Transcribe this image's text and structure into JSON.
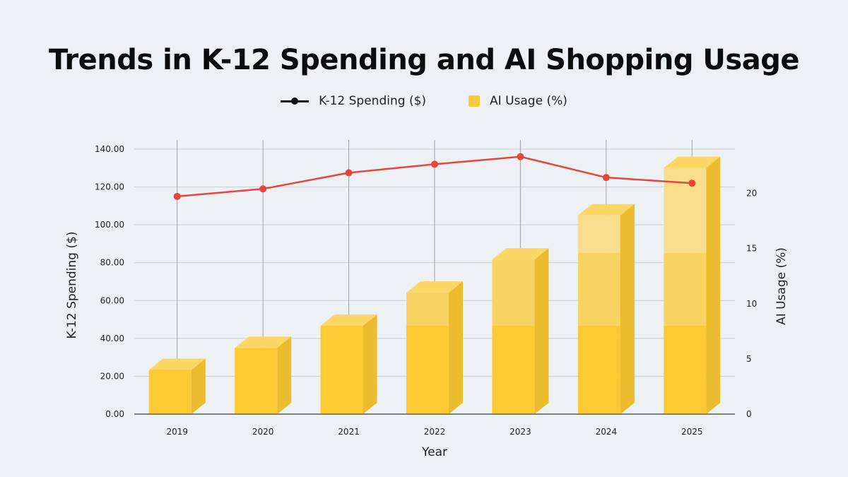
{
  "chart_data": {
    "type": "bar",
    "title": "Trends in K-12 Spending and AI Shopping Usage",
    "categories": [
      "2019",
      "2020",
      "2021",
      "2022",
      "2023",
      "2024",
      "2025"
    ],
    "xlabel": "Year",
    "ylabel_left": "K-12 Spending ($)",
    "ylabel_right": "AI Usage (%)",
    "ylim_left": [
      0,
      140
    ],
    "ylim_right": [
      0,
      24
    ],
    "yticks_left": [
      "0.00",
      "20.00",
      "40.00",
      "60.00",
      "80.00",
      "100.00",
      "120.00",
      "140.00"
    ],
    "yticks_right": [
      "0",
      "5",
      "10",
      "15",
      "20"
    ],
    "grid": true,
    "legend_position": "top-center",
    "series": [
      {
        "name": "K-12 Spending ($)",
        "type": "line",
        "axis": "left",
        "color": "#e5473e",
        "values": [
          115,
          119,
          127.5,
          132,
          136,
          125,
          122
        ]
      },
      {
        "name": "AI Usage (%)",
        "type": "bar",
        "axis": "right",
        "color": "#fcc93a",
        "values": [
          4,
          6,
          8,
          11,
          14,
          18,
          22.3
        ]
      }
    ]
  },
  "legend": {
    "line_label": "K-12 Spending ($)",
    "bar_label": "AI Usage (%)"
  }
}
